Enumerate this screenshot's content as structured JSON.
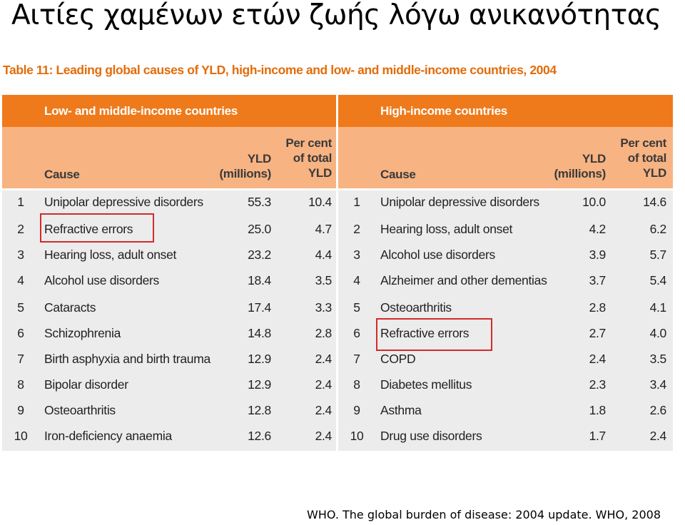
{
  "slide": {
    "title": "Αιτίες χαμένων ετών ζωής λόγω ανικανότητας",
    "caption": "Table 11: Leading global causes of YLD, high-income and low- and middle-income countries, 2004",
    "source": "WHO. The global burden of disease: 2004 update. WHO, 2008"
  },
  "table": {
    "left_group": "Low- and middle-income countries",
    "right_group": "High-income countries",
    "headers": {
      "cause": "Cause",
      "yld_line1": "YLD",
      "yld_line2": "(millions)",
      "pct_line1": "Per cent",
      "pct_line2": "of total",
      "pct_line3": "YLD"
    },
    "left_rows": [
      {
        "rank": "1",
        "cause": "Unipolar depressive disorders",
        "yld": "55.3",
        "pct": "10.4"
      },
      {
        "rank": "2",
        "cause": "Refractive errors",
        "yld": "25.0",
        "pct": "4.7"
      },
      {
        "rank": "3",
        "cause": "Hearing loss, adult onset",
        "yld": "23.2",
        "pct": "4.4"
      },
      {
        "rank": "4",
        "cause": "Alcohol use disorders",
        "yld": "18.4",
        "pct": "3.5"
      },
      {
        "rank": "5",
        "cause": "Cataracts",
        "yld": "17.4",
        "pct": "3.3"
      },
      {
        "rank": "6",
        "cause": "Schizophrenia",
        "yld": "14.8",
        "pct": "2.8"
      },
      {
        "rank": "7",
        "cause": "Birth asphyxia and birth trauma",
        "yld": "12.9",
        "pct": "2.4"
      },
      {
        "rank": "8",
        "cause": "Bipolar disorder",
        "yld": "12.9",
        "pct": "2.4"
      },
      {
        "rank": "9",
        "cause": "Osteoarthritis",
        "yld": "12.8",
        "pct": "2.4"
      },
      {
        "rank": "10",
        "cause": "Iron-deficiency anaemia",
        "yld": "12.6",
        "pct": "2.4"
      }
    ],
    "right_rows": [
      {
        "rank": "1",
        "cause": "Unipolar depressive disorders",
        "yld": "10.0",
        "pct": "14.6"
      },
      {
        "rank": "2",
        "cause": "Hearing loss, adult onset",
        "yld": "4.2",
        "pct": "6.2"
      },
      {
        "rank": "3",
        "cause": "Alcohol use disorders",
        "yld": "3.9",
        "pct": "5.7"
      },
      {
        "rank": "4",
        "cause": "Alzheimer and other dementias",
        "yld": "3.7",
        "pct": "5.4"
      },
      {
        "rank": "5",
        "cause": "Osteoarthritis",
        "yld": "2.8",
        "pct": "4.1"
      },
      {
        "rank": "6",
        "cause": "Refractive errors",
        "yld": "2.7",
        "pct": "4.0"
      },
      {
        "rank": "7",
        "cause": "COPD",
        "yld": "2.4",
        "pct": "3.5"
      },
      {
        "rank": "8",
        "cause": "Diabetes mellitus",
        "yld": "2.3",
        "pct": "3.4"
      },
      {
        "rank": "9",
        "cause": "Asthma",
        "yld": "1.8",
        "pct": "2.6"
      },
      {
        "rank": "10",
        "cause": "Drug use disorders",
        "yld": "1.7",
        "pct": "2.4"
      }
    ],
    "highlight_color": "#d22b2b",
    "accent_color": "#ef7a1b",
    "header_fill": "#f7b382"
  }
}
